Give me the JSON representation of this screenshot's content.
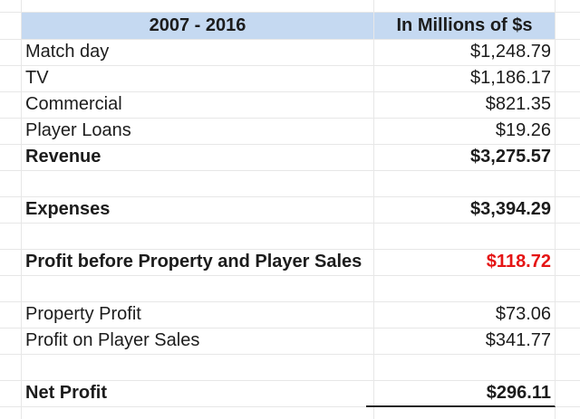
{
  "colors": {
    "header_bg": "#c5d9f1",
    "text": "#1c1c1c",
    "negative_value": "#e51414",
    "gridline": "#e7e7e7",
    "total_rule": "#262626"
  },
  "header": {
    "period": "2007 - 2016",
    "unit": "In Millions of $s"
  },
  "rows": [
    {
      "label": "Match day",
      "value": "$1,248.79",
      "bold": false,
      "red": false,
      "total_rule": false
    },
    {
      "label": "TV",
      "value": "$1,186.17",
      "bold": false,
      "red": false,
      "total_rule": false
    },
    {
      "label": "Commercial",
      "value": "$821.35",
      "bold": false,
      "red": false,
      "total_rule": false
    },
    {
      "label": "Player Loans",
      "value": "$19.26",
      "bold": false,
      "red": false,
      "total_rule": false
    },
    {
      "label": "Revenue",
      "value": "$3,275.57",
      "bold": true,
      "red": false,
      "total_rule": false
    },
    {
      "label": "",
      "value": "",
      "bold": false,
      "red": false,
      "total_rule": false
    },
    {
      "label": "Expenses",
      "value": "$3,394.29",
      "bold": true,
      "red": false,
      "total_rule": false
    },
    {
      "label": "",
      "value": "",
      "bold": false,
      "red": false,
      "total_rule": false
    },
    {
      "label": "Profit before Property and Player Sales",
      "value": "$118.72",
      "bold": true,
      "red": true,
      "total_rule": false
    },
    {
      "label": "",
      "value": "",
      "bold": false,
      "red": false,
      "total_rule": false
    },
    {
      "label": "Property Profit",
      "value": "$73.06",
      "bold": false,
      "red": false,
      "total_rule": false
    },
    {
      "label": "Profit on Player Sales",
      "value": "$341.77",
      "bold": false,
      "red": false,
      "total_rule": false
    },
    {
      "label": "",
      "value": "",
      "bold": false,
      "red": false,
      "total_rule": false
    },
    {
      "label": "Net Profit",
      "value": "$296.11",
      "bold": true,
      "red": false,
      "total_rule": true
    }
  ]
}
